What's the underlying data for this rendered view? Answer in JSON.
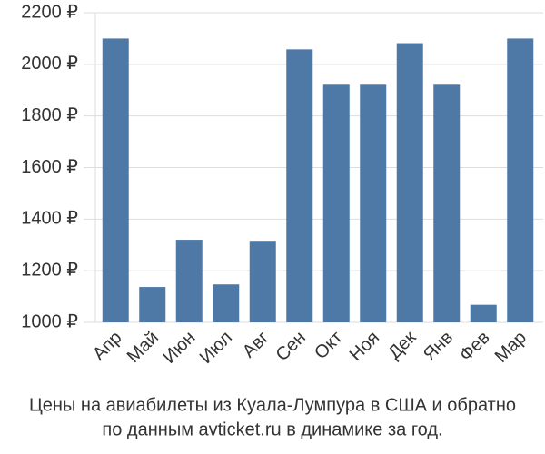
{
  "chart_data": {
    "type": "bar",
    "title": [
      "Цены на авиабилеты из Куала-Лумпура в США и обратно",
      "по данным avticket.ru в динамике за год."
    ],
    "categories": [
      "Апр",
      "Май",
      "Июн",
      "Июл",
      "Авг",
      "Сен",
      "Окт",
      "Ноя",
      "Дек",
      "Янв",
      "Фев",
      "Мар"
    ],
    "values": [
      2100,
      1137,
      1320,
      1147,
      1316,
      2058,
      1921,
      1921,
      2082,
      1921,
      1068,
      2100
    ],
    "color": "#4e79a7",
    "ylim": [
      1000,
      2200
    ],
    "yticks": [
      {
        "value": 1000,
        "label": "1000 ₽"
      },
      {
        "value": 1200,
        "label": "1200 ₽"
      },
      {
        "value": 1400,
        "label": "1400 ₽"
      },
      {
        "value": 1600,
        "label": "1600 ₽"
      },
      {
        "value": 1800,
        "label": "1800 ₽"
      },
      {
        "value": 2000,
        "label": "2000 ₽"
      },
      {
        "value": 2200,
        "label": "2200 ₽"
      }
    ],
    "grid": true
  }
}
